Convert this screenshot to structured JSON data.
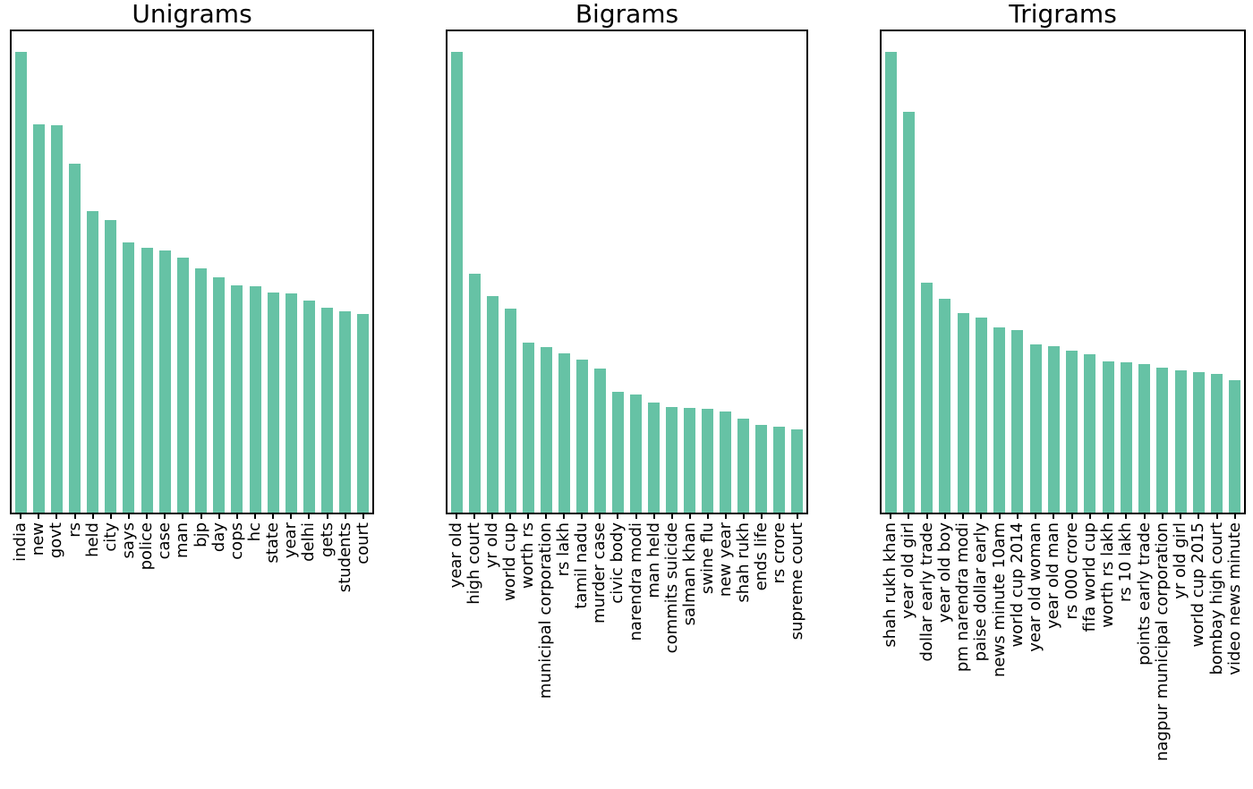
{
  "styles": {
    "bar_color": "#66c2a5",
    "axis_color": "#000000",
    "background": "#ffffff",
    "text_color": "#000000"
  },
  "chart_data": [
    {
      "type": "bar",
      "title": "Unigrams",
      "xlabel": "",
      "ylabel": "",
      "yticks_visible": false,
      "grid": false,
      "legend": "none",
      "x_tick_rotation": 90,
      "ylim": [
        0,
        1.05
      ],
      "value_units": "relative frequency (max = 1.0, no y-axis labels shown)",
      "categories": [
        "india",
        "new",
        "govt",
        "rs",
        "held",
        "city",
        "says",
        "police",
        "case",
        "man",
        "bjp",
        "day",
        "cops",
        "hc",
        "state",
        "year",
        "delhi",
        "gets",
        "students",
        "court"
      ],
      "values": [
        1.0,
        0.842,
        0.84,
        0.757,
        0.654,
        0.634,
        0.586,
        0.574,
        0.568,
        0.553,
        0.531,
        0.51,
        0.494,
        0.492,
        0.477,
        0.475,
        0.461,
        0.444,
        0.436,
        0.432
      ]
    },
    {
      "type": "bar",
      "title": "Bigrams",
      "xlabel": "",
      "ylabel": "",
      "yticks_visible": false,
      "grid": false,
      "legend": "none",
      "x_tick_rotation": 90,
      "ylim": [
        0,
        1.05
      ],
      "value_units": "relative frequency (max = 1.0, no y-axis labels shown)",
      "categories": [
        "year old",
        "high court",
        "yr old",
        "world cup",
        "worth rs",
        "municipal corporation",
        "rs lakh",
        "tamil nadu",
        "murder case",
        "civic body",
        "narendra modi",
        "man held",
        "commits suicide",
        "salman khan",
        "swine flu",
        "new year",
        "shah rukh",
        "ends life",
        "rs crore",
        "supreme court"
      ],
      "values": [
        1.0,
        0.518,
        0.47,
        0.443,
        0.369,
        0.359,
        0.346,
        0.332,
        0.313,
        0.262,
        0.256,
        0.239,
        0.229,
        0.227,
        0.225,
        0.219,
        0.204,
        0.19,
        0.186,
        0.181
      ]
    },
    {
      "type": "bar",
      "title": "Trigrams",
      "xlabel": "",
      "ylabel": "",
      "yticks_visible": false,
      "grid": false,
      "legend": "none",
      "x_tick_rotation": 90,
      "ylim": [
        0,
        1.05
      ],
      "value_units": "relative frequency (max = 1.0, no y-axis labels shown)",
      "categories": [
        "shah rukh khan",
        "year old girl",
        "dollar early trade",
        "year old boy",
        "pm narendra modi",
        "paise dollar early",
        "news minute 10am",
        "world cup 2014",
        "year old woman",
        "year old man",
        "rs 000 crore",
        "fifa world cup",
        "worth rs lakh",
        "rs 10 lakh",
        "points early trade",
        "nagpur municipal corporation",
        "yr old girl",
        "world cup 2015",
        "bombay high court",
        "video news minute"
      ],
      "values": [
        1.0,
        0.87,
        0.499,
        0.464,
        0.433,
        0.423,
        0.402,
        0.396,
        0.365,
        0.361,
        0.351,
        0.344,
        0.328,
        0.326,
        0.322,
        0.315,
        0.309,
        0.305,
        0.301,
        0.287
      ]
    }
  ]
}
